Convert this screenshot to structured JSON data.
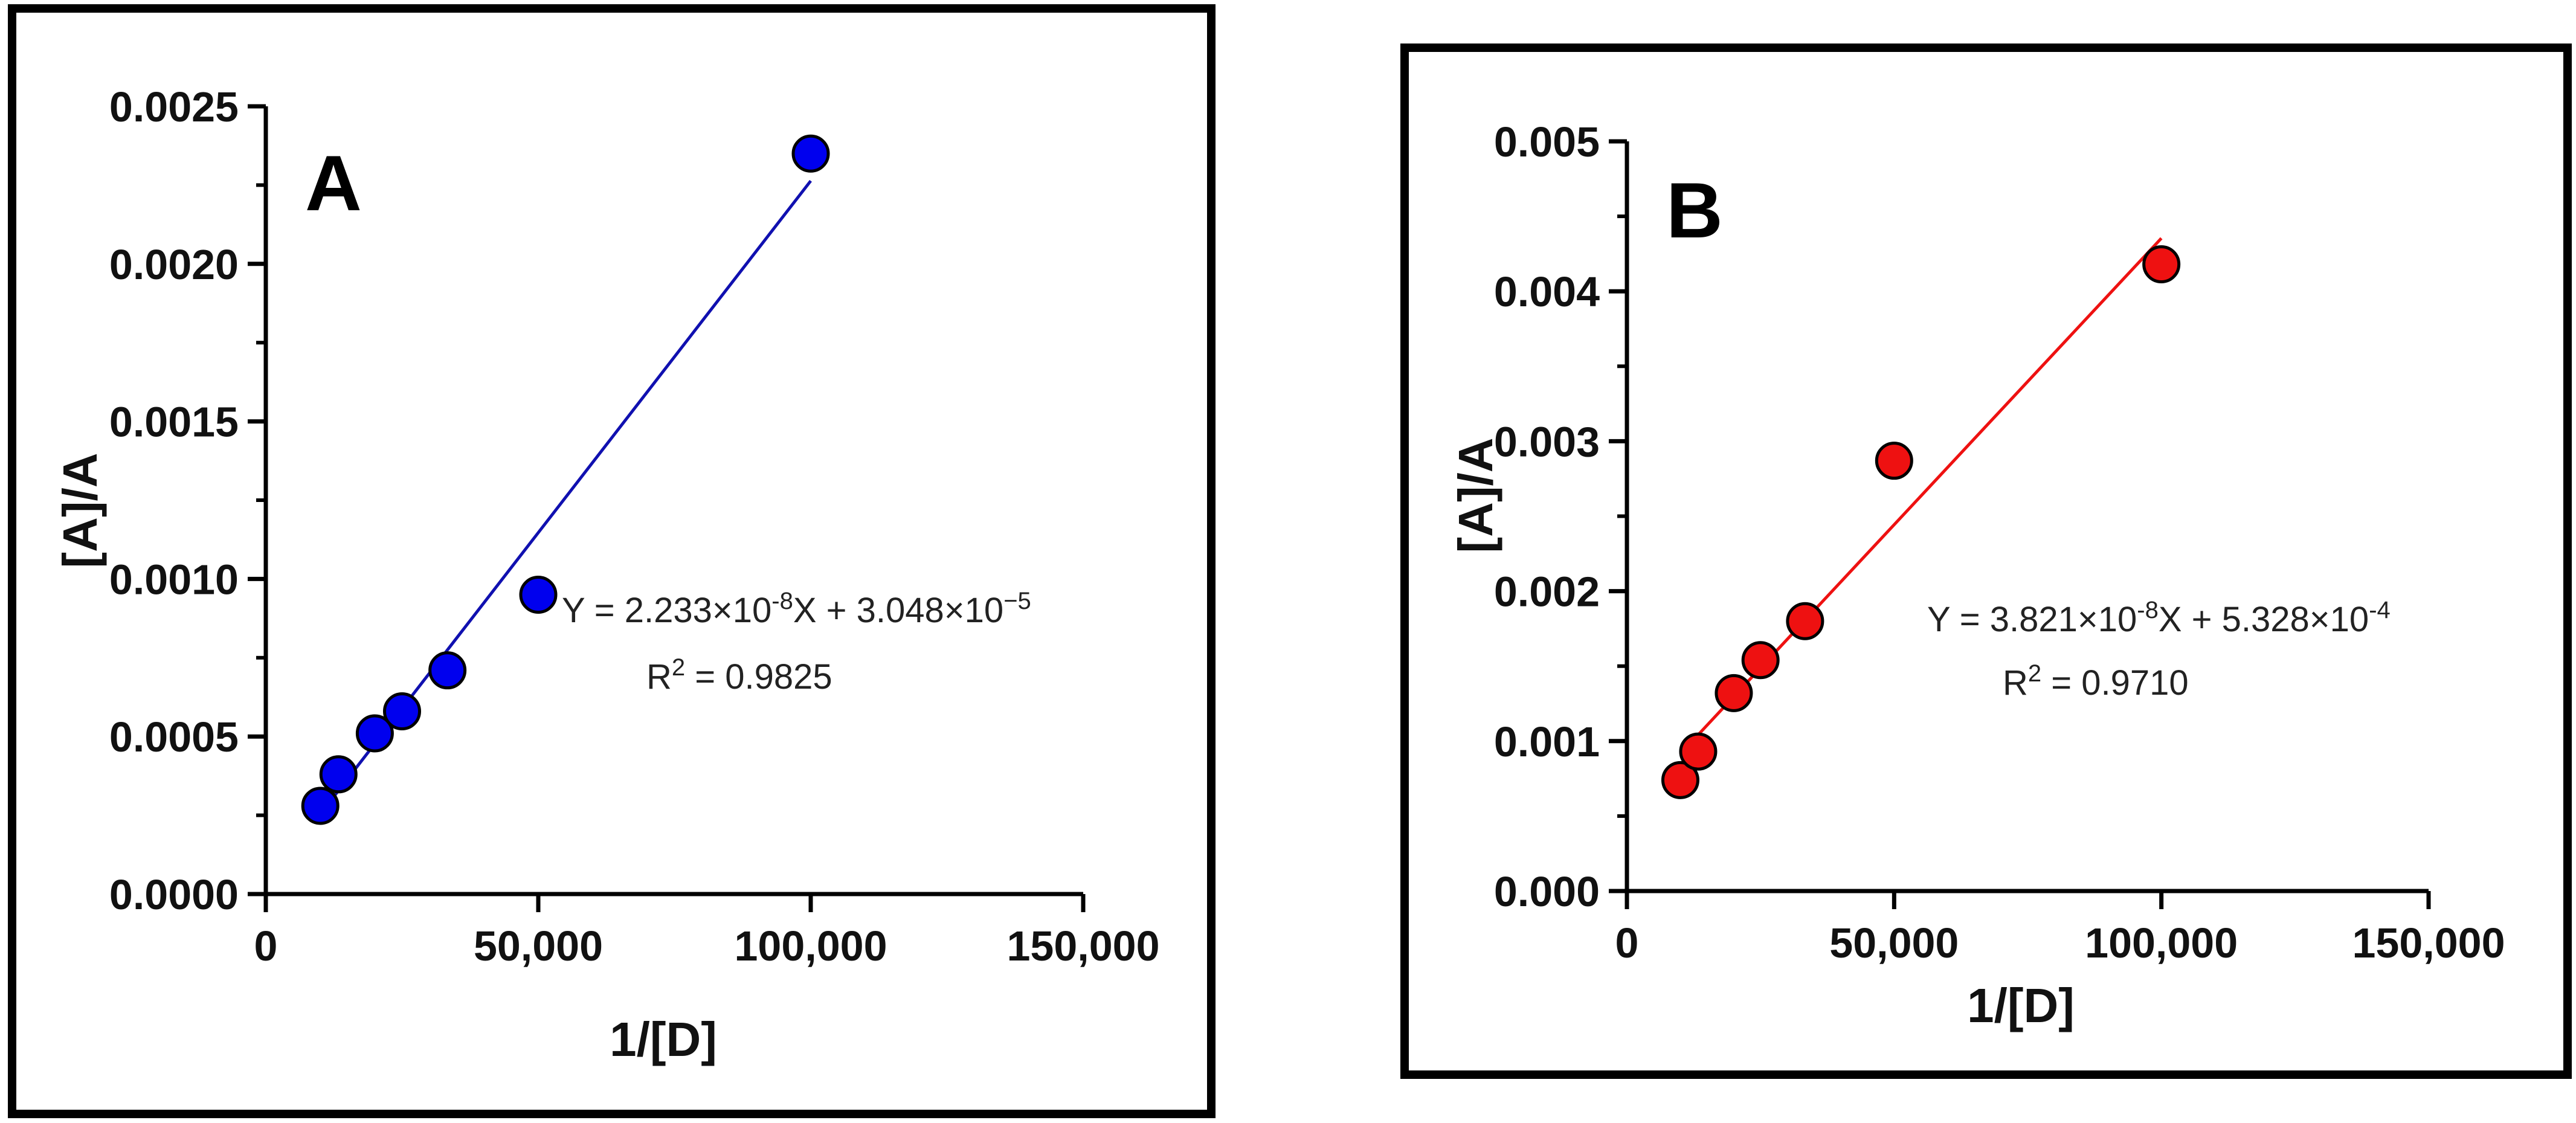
{
  "chart_data": [
    {
      "type": "scatter",
      "panel_label": "A",
      "xlabel": "1/[D]",
      "ylabel": "[A]/A",
      "xlim": [
        0,
        150000
      ],
      "ylim": [
        0,
        0.0025
      ],
      "xticks": [
        0,
        50000,
        100000,
        150000
      ],
      "xtick_labels": [
        "0",
        "50,000",
        "100,000",
        "150,000"
      ],
      "yticks": [
        0,
        0.0005,
        0.001,
        0.0015,
        0.002,
        0.0025
      ],
      "ytick_labels": [
        "0.0000",
        "0.0005",
        "0.0010",
        "0.0015",
        "0.0020",
        "0.0025"
      ],
      "y_minor_ticks": [
        0.00025,
        0.00075,
        0.00125,
        0.00175,
        0.00225
      ],
      "grid": false,
      "color": "#0000ee",
      "line_color": "#1010b0",
      "x": [
        10000,
        13333,
        20000,
        25000,
        33333,
        50000,
        100000
      ],
      "y": [
        0.00028,
        0.00038,
        0.00051,
        0.00058,
        0.00071,
        0.00095,
        0.00235
      ],
      "fit": {
        "slope": 2.233e-08,
        "intercept": 3.048e-05,
        "x_range": [
          10000,
          100000
        ]
      },
      "equation": {
        "prefix": "Y = 2.233",
        "exp1": "-8",
        "mid": "X + 3.048",
        "exp2": "−5",
        "r2_value": "0.9825"
      }
    },
    {
      "type": "scatter",
      "panel_label": "B",
      "xlabel": "1/[D]",
      "ylabel": "[A]/A",
      "xlim": [
        0,
        150000
      ],
      "ylim": [
        0,
        0.005
      ],
      "xticks": [
        0,
        50000,
        100000,
        150000
      ],
      "xtick_labels": [
        "0",
        "50,000",
        "100,000",
        "150,000"
      ],
      "yticks": [
        0,
        0.001,
        0.002,
        0.003,
        0.004,
        0.005
      ],
      "ytick_labels": [
        "0.000",
        "0.001",
        "0.002",
        "0.003",
        "0.004",
        "0.005"
      ],
      "y_minor_ticks": [
        0.0005,
        0.0015,
        0.0025,
        0.0035,
        0.0045
      ],
      "grid": false,
      "color": "#ee1111",
      "line_color": "#ee1111",
      "x": [
        10000,
        13333,
        20000,
        25000,
        33333,
        50000,
        100000
      ],
      "y": [
        0.00074,
        0.00093,
        0.00132,
        0.00154,
        0.0018,
        0.00287,
        0.00418
      ],
      "fit": {
        "slope": 3.821e-08,
        "intercept": 0.0005328,
        "x_range": [
          10000,
          100000
        ]
      },
      "equation": {
        "prefix": "Y = 3.821",
        "exp1": "-8",
        "mid": "X + 5.328",
        "exp2": "-4",
        "r2_value": "0.9710"
      }
    }
  ]
}
